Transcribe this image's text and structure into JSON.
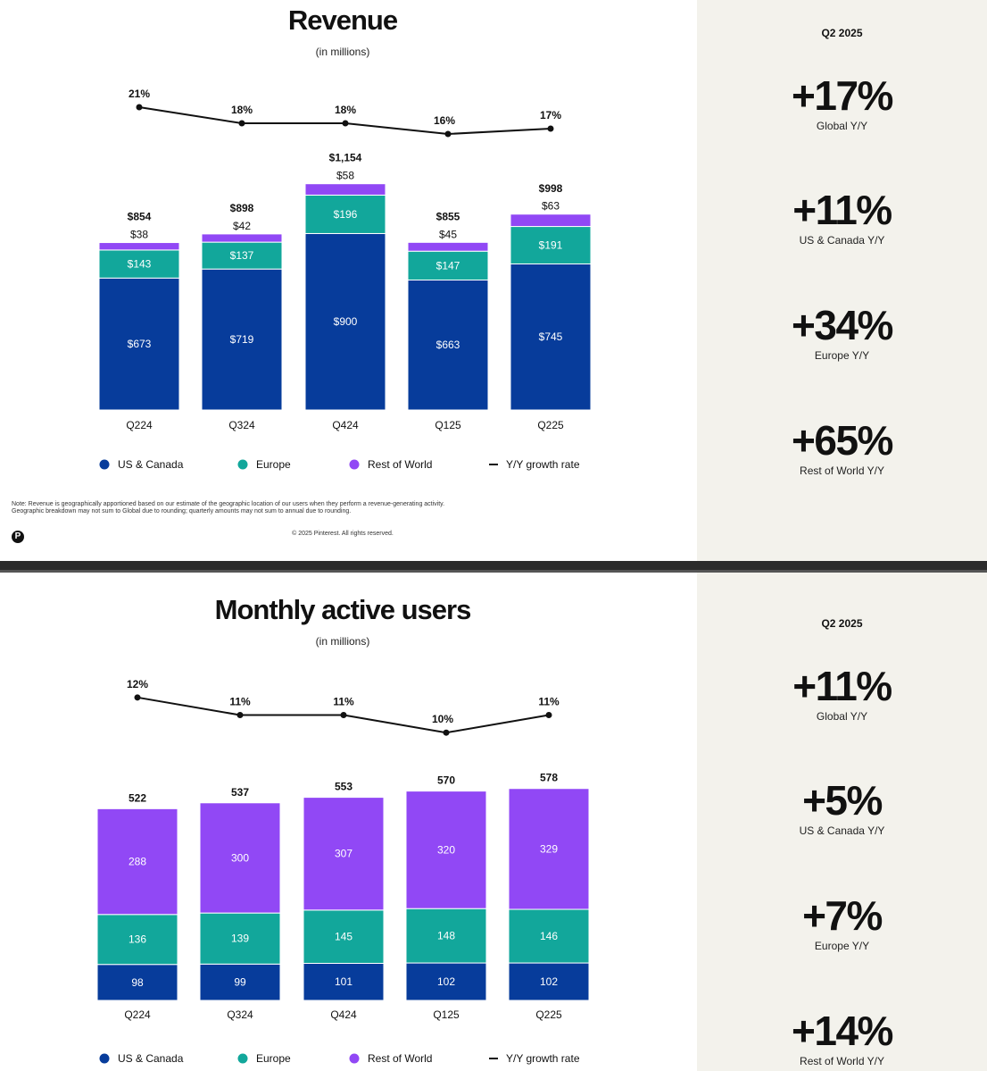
{
  "colors": {
    "us_canada": "#073c9b",
    "europe": "#12a79b",
    "rest_of_world": "#9148f5",
    "line": "#111111",
    "side_bg": "#f3f2ec"
  },
  "legend": {
    "us_canada": "US & Canada",
    "europe": "Europe",
    "rest_of_world": "Rest of World",
    "growth": "Y/Y growth rate"
  },
  "revenue_slide": {
    "side": {
      "period": "Q2 2025",
      "stats": [
        {
          "value": "+17%",
          "label": "Global Y/Y"
        },
        {
          "value": "+11%",
          "label": "US & Canada Y/Y"
        },
        {
          "value": "+34%",
          "label": "Europe Y/Y"
        },
        {
          "value": "+65%",
          "label": "Rest of World Y/Y"
        }
      ]
    },
    "note_line1": "Note: Revenue is geographically apportioned based on our estimate of the geographic location of our users when they perform a revenue-generating activity.",
    "note_line2": "Geographic breakdown may not sum to Global due to rounding; quarterly amounts may not sum to annual due to rounding.",
    "copyright": "© 2025 Pinterest. All rights reserved.",
    "logo": "P"
  },
  "mau_slide": {
    "side": {
      "period": "Q2 2025",
      "stats": [
        {
          "value": "+11%",
          "label": "Global Y/Y"
        },
        {
          "value": "+5%",
          "label": "US & Canada Y/Y"
        },
        {
          "value": "+7%",
          "label": "Europe Y/Y"
        },
        {
          "value": "+14%",
          "label": "Rest of World Y/Y"
        }
      ]
    }
  },
  "chart_data": [
    {
      "type": "bar",
      "stacked": true,
      "title": "Revenue",
      "subtitle": "(in millions)",
      "categories": [
        "Q224",
        "Q324",
        "Q424",
        "Q125",
        "Q225"
      ],
      "series": [
        {
          "name": "US & Canada",
          "key": "us_canada",
          "values": [
            673,
            719,
            900,
            663,
            745
          ],
          "labels": [
            "$673",
            "$719",
            "$900",
            "$663",
            "$745"
          ]
        },
        {
          "name": "Europe",
          "key": "europe",
          "values": [
            143,
            137,
            196,
            147,
            191
          ],
          "labels": [
            "$143",
            "$137",
            "$196",
            "$147",
            "$191"
          ]
        },
        {
          "name": "Rest of World",
          "key": "rest_of_world",
          "values": [
            38,
            42,
            58,
            45,
            63
          ],
          "labels": [
            "$38",
            "$42",
            "$58",
            "$45",
            "$63"
          ]
        }
      ],
      "totals": [
        854,
        898,
        1154,
        855,
        998
      ],
      "total_labels": [
        "$854",
        "$898",
        "$1,154",
        "$855",
        "$998"
      ],
      "growth": {
        "name": "Y/Y growth rate",
        "values": [
          21,
          18,
          18,
          16,
          17
        ],
        "labels": [
          "21%",
          "18%",
          "18%",
          "16%",
          "17%"
        ],
        "range": [
          10,
          25
        ]
      }
    },
    {
      "type": "bar",
      "stacked": true,
      "title": "Monthly active users",
      "subtitle": "(in millions)",
      "categories": [
        "Q224",
        "Q324",
        "Q424",
        "Q125",
        "Q225"
      ],
      "series": [
        {
          "name": "US & Canada",
          "key": "us_canada",
          "values": [
            98,
            99,
            101,
            102,
            102
          ],
          "labels": [
            "98",
            "99",
            "101",
            "102",
            "102"
          ]
        },
        {
          "name": "Europe",
          "key": "europe",
          "values": [
            136,
            139,
            145,
            148,
            146
          ],
          "labels": [
            "136",
            "139",
            "145",
            "148",
            "146"
          ]
        },
        {
          "name": "Rest of World",
          "key": "rest_of_world",
          "values": [
            288,
            300,
            307,
            320,
            329
          ],
          "labels": [
            "288",
            "300",
            "307",
            "320",
            "329"
          ]
        }
      ],
      "totals": [
        522,
        537,
        553,
        570,
        578
      ],
      "total_labels": [
        "522",
        "537",
        "553",
        "570",
        "578"
      ],
      "growth": {
        "name": "Y/Y growth rate",
        "values": [
          12,
          11,
          11,
          10,
          11
        ],
        "labels": [
          "12%",
          "11%",
          "11%",
          "10%",
          "11%"
        ],
        "range": [
          9.3,
          12.6
        ]
      }
    }
  ]
}
